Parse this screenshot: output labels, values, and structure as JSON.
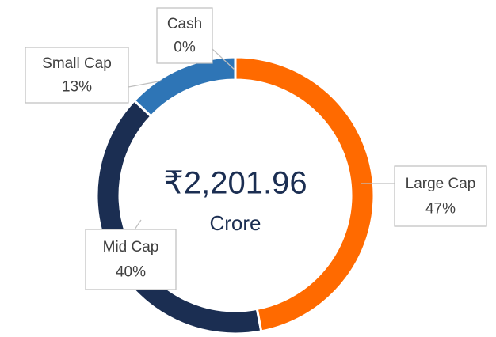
{
  "chart_data": {
    "type": "donut",
    "center_value": "₹2,201.96",
    "center_unit": "Crore",
    "categories": [
      "Large Cap",
      "Mid Cap",
      "Small Cap",
      "Cash"
    ],
    "values": [
      47,
      40,
      13,
      0
    ],
    "value_labels": [
      "47%",
      "40%",
      "13%",
      "0%"
    ],
    "colors": [
      "#ff6a00",
      "#1b2e52",
      "#2e75b6",
      "#a5a5a5"
    ]
  }
}
